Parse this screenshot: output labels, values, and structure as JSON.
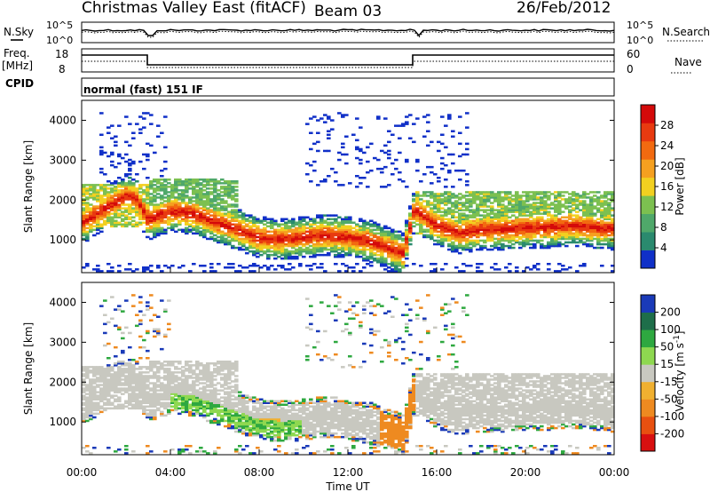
{
  "header": {
    "title": "Christmas Valley East (fitACF)",
    "beam": "Beam 03",
    "date": "26/Feb/2012"
  },
  "noise_panel": {
    "left_label": "N.Sky",
    "right_label": "N.Search",
    "left_ticks": [
      "10^5",
      "10^0"
    ],
    "right_ticks": [
      "10^5",
      "10^0"
    ]
  },
  "freq_panel": {
    "left_label_1": "Freq.",
    "left_label_2": "[MHz]",
    "right_label": "Nave",
    "left_ticks": [
      "18",
      "8"
    ],
    "right_ticks": [
      "60",
      "0"
    ]
  },
  "cpid": {
    "label": "CPID",
    "mode": "normal (fast) 151 IF"
  },
  "x_axis": {
    "label": "Time UT",
    "ticks": [
      "00:00",
      "04:00",
      "08:00",
      "12:00",
      "16:00",
      "20:00",
      "00:00"
    ]
  },
  "colors": {
    "power": [
      "#1030c8",
      "#2a8a6e",
      "#4fa86a",
      "#7cc050",
      "#f2d020",
      "#f5a020",
      "#f26a10",
      "#e83a10",
      "#d40a0a"
    ],
    "velocity": [
      "#1a3ab8",
      "#1e6e4a",
      "#2ea840",
      "#8ed850",
      "#c8c8c0",
      "#f0b030",
      "#ee8a20",
      "#e85010",
      "#d81010"
    ]
  },
  "chart_data": [
    {
      "type": "heatmap",
      "title": "Power",
      "xlabel": "Time UT",
      "ylabel": "Slant Range [km]",
      "xlim": [
        "00:00",
        "24:00"
      ],
      "ylim": [
        180,
        4500
      ],
      "yticks": [
        1000,
        2000,
        3000,
        4000
      ],
      "colorbar": {
        "label": "Power [dB]",
        "range": [
          0,
          30
        ],
        "ticks": [
          4,
          8,
          12,
          16,
          20,
          24,
          28
        ]
      },
      "echo_band": {
        "time_h": [
          0,
          1,
          2,
          2.5,
          3,
          4,
          5,
          6,
          7,
          8,
          9,
          10,
          11,
          12,
          13,
          14,
          14.5,
          15,
          16,
          17,
          18,
          19,
          20,
          21,
          22,
          23,
          24
        ],
        "center_km": [
          1400,
          1750,
          2100,
          2000,
          1500,
          1700,
          1650,
          1450,
          1250,
          1050,
          1000,
          1050,
          1100,
          1050,
          950,
          750,
          650,
          1750,
          1350,
          1150,
          1250,
          1250,
          1300,
          1300,
          1350,
          1300,
          1250
        ]
      }
    },
    {
      "type": "heatmap",
      "title": "Velocity",
      "xlabel": "Time UT",
      "ylabel": "Slant Range [km]",
      "xlim": [
        "00:00",
        "24:00"
      ],
      "ylim": [
        180,
        4500
      ],
      "yticks": [
        1000,
        2000,
        3000,
        4000
      ],
      "colorbar": {
        "label": "Velocity [m s^-1]",
        "range": [
          -250,
          250
        ],
        "ticks": [
          200,
          100,
          50,
          15,
          -15,
          -50,
          -100,
          -200
        ]
      }
    }
  ]
}
